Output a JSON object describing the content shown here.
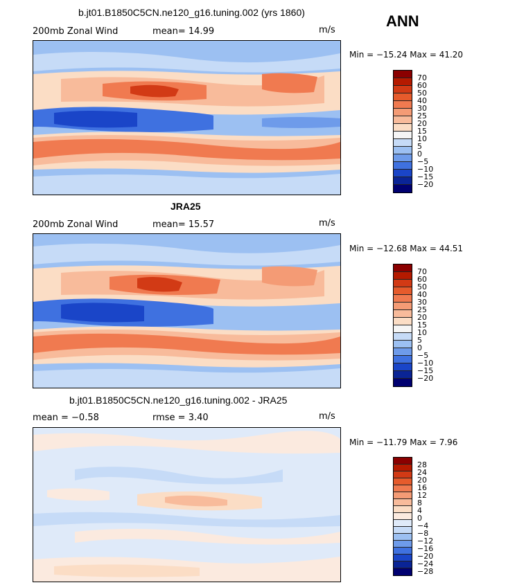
{
  "season": "ANN",
  "panels": [
    {
      "title": "b.jt01.B1850C5CN.ne120_g16.tuning.002 (yrs 1860)",
      "left_label": "200mb Zonal Wind",
      "stat_label": "mean=  14.99",
      "units": "m/s",
      "minmax": "Min = −15.24 Max =  41.20",
      "colorbar_labels": [
        "70",
        "60",
        "50",
        "40",
        "30",
        "25",
        "20",
        "15",
        "10",
        "5",
        "0",
        "−5",
        "−10",
        "−15",
        "−20"
      ]
    },
    {
      "title": "JRA25",
      "left_label": "200mb Zonal Wind",
      "stat_label": "mean=  15.57",
      "units": "m/s",
      "minmax": "Min = −12.68 Max =  44.51",
      "colorbar_labels": [
        "70",
        "60",
        "50",
        "40",
        "30",
        "25",
        "20",
        "15",
        "10",
        "5",
        "0",
        "−5",
        "−10",
        "−15",
        "−20"
      ]
    },
    {
      "title": "b.jt01.B1850C5CN.ne120_g16.tuning.002 - JRA25",
      "left_label": "mean =  −0.58",
      "stat_label": "rmse =   3.40",
      "units": "m/s",
      "minmax": "Min = −11.79 Max =   7.96",
      "colorbar_labels": [
        "28",
        "24",
        "20",
        "16",
        "12",
        "8",
        "4",
        "0",
        "−4",
        "−8",
        "−12",
        "−16",
        "−20",
        "−24",
        "−28"
      ]
    }
  ],
  "colors": {
    "colorbar": [
      "#8b0000",
      "#b51a00",
      "#d23a15",
      "#e65b2c",
      "#f07a50",
      "#f49b75",
      "#f8bb9b",
      "#fbddc5",
      "#f5f5f5",
      "#c6dbf7",
      "#9cc0f2",
      "#6e9bea",
      "#3f71e0",
      "#1a45c8",
      "#0a2496",
      "#000070"
    ],
    "diff_colorbar": [
      "#8b0000",
      "#b51a00",
      "#d23a15",
      "#e65b2c",
      "#f07a50",
      "#f49b75",
      "#f8bb9b",
      "#fbddc5",
      "#fbeadf",
      "#dfeaf9",
      "#c6dbf7",
      "#9cc0f2",
      "#6e9bea",
      "#3f71e0",
      "#1a45c8",
      "#0a2496",
      "#000070"
    ]
  }
}
